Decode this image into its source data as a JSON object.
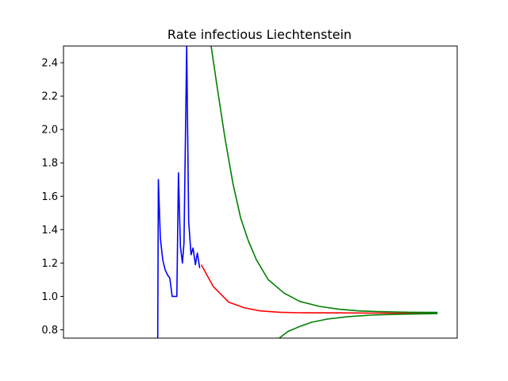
{
  "chart_data": {
    "type": "line",
    "title": "Rate infectious Liechtenstein",
    "xlabel": "",
    "ylabel": "",
    "xlim": [
      0,
      100
    ],
    "ylim": [
      0.75,
      2.5
    ],
    "grid": false,
    "legend": "none",
    "xticks": [],
    "yticks": [
      {
        "value": 0.8,
        "label": "0.8"
      },
      {
        "value": 1.0,
        "label": "1.0"
      },
      {
        "value": 1.2,
        "label": "1.2"
      },
      {
        "value": 1.4,
        "label": "1.4"
      },
      {
        "value": 1.6,
        "label": "1.6"
      },
      {
        "value": 1.8,
        "label": "1.8"
      },
      {
        "value": 2.0,
        "label": "2.0"
      },
      {
        "value": 2.2,
        "label": "2.2"
      },
      {
        "value": 2.4,
        "label": "2.4"
      }
    ],
    "series": [
      {
        "color": "#0000ff",
        "points": [
          [
            23.9,
            0.5
          ],
          [
            24.1,
            1.7
          ],
          [
            24.6,
            1.35
          ],
          [
            25.2,
            1.22
          ],
          [
            25.8,
            1.16
          ],
          [
            26.4,
            1.13
          ],
          [
            27.0,
            1.11
          ],
          [
            27.6,
            1.0
          ],
          [
            28.2,
            1.0
          ],
          [
            28.8,
            1.0
          ],
          [
            29.2,
            1.74
          ],
          [
            29.7,
            1.3
          ],
          [
            30.2,
            1.2
          ],
          [
            30.6,
            1.32
          ],
          [
            31.3,
            2.5
          ],
          [
            31.8,
            1.45
          ],
          [
            32.4,
            1.25
          ],
          [
            32.9,
            1.29
          ],
          [
            33.5,
            1.19
          ],
          [
            34.0,
            1.26
          ],
          [
            34.6,
            1.17
          ]
        ]
      },
      {
        "color": "#ff0000",
        "points": [
          [
            35.0,
            1.19
          ],
          [
            38.0,
            1.06
          ],
          [
            42.0,
            0.965
          ],
          [
            46.0,
            0.931
          ],
          [
            50.0,
            0.913
          ],
          [
            55.0,
            0.905
          ],
          [
            60.0,
            0.902
          ],
          [
            70.0,
            0.901
          ],
          [
            80.0,
            0.9
          ],
          [
            90.0,
            0.9
          ],
          [
            95.0,
            0.9
          ]
        ]
      },
      {
        "color": "#008000",
        "points": [
          [
            37.5,
            2.5
          ],
          [
            39.0,
            2.26
          ],
          [
            41.0,
            1.95
          ],
          [
            43.0,
            1.68
          ],
          [
            45.0,
            1.47
          ],
          [
            47.0,
            1.33
          ],
          [
            49.0,
            1.22
          ],
          [
            52.0,
            1.1
          ],
          [
            56.0,
            1.02
          ],
          [
            60.0,
            0.97
          ],
          [
            65.0,
            0.94
          ],
          [
            70.0,
            0.923
          ],
          [
            75.0,
            0.913
          ],
          [
            80.0,
            0.909
          ],
          [
            88.0,
            0.905
          ],
          [
            95.0,
            0.904
          ]
        ]
      },
      {
        "color": "#008000",
        "points": [
          [
            54.8,
            0.75
          ],
          [
            57.0,
            0.79
          ],
          [
            60.0,
            0.82
          ],
          [
            63.0,
            0.845
          ],
          [
            67.0,
            0.864
          ],
          [
            72.0,
            0.878
          ],
          [
            78.0,
            0.888
          ],
          [
            85.0,
            0.893
          ],
          [
            95.0,
            0.897
          ]
        ]
      }
    ]
  }
}
